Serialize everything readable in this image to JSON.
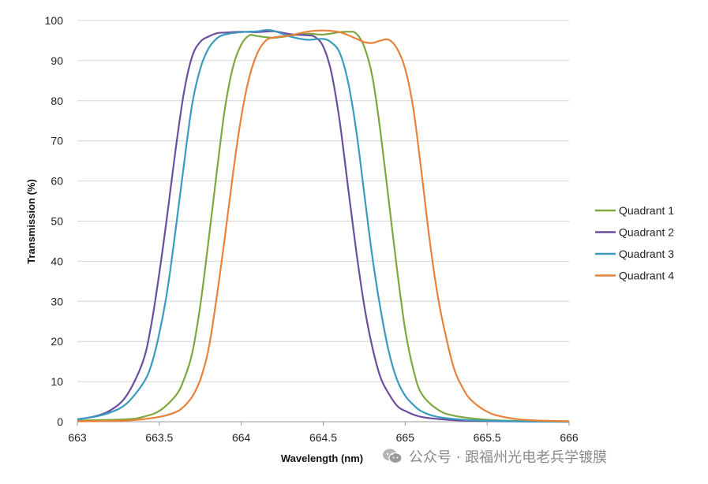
{
  "chart_data": {
    "type": "line",
    "xlabel": "Wavelength (nm)",
    "ylabel": "Transmission (%)",
    "xlim": [
      663,
      666
    ],
    "ylim": [
      0,
      100
    ],
    "x_ticks": [
      "663",
      "663.5",
      "664",
      "664.5",
      "665",
      "665.5",
      "666"
    ],
    "y_ticks": [
      "0",
      "10",
      "20",
      "30",
      "40",
      "50",
      "60",
      "70",
      "80",
      "90",
      "100"
    ],
    "grid": "horizontal",
    "legend_position": "right",
    "series": [
      {
        "name": "Quadrant 1",
        "color": "#7ea83f",
        "points": [
          [
            663,
            0.3
          ],
          [
            663.3,
            0.6
          ],
          [
            663.4,
            1.2
          ],
          [
            663.5,
            2.7
          ],
          [
            663.6,
            6.5
          ],
          [
            663.65,
            10.5
          ],
          [
            663.7,
            17
          ],
          [
            663.75,
            29
          ],
          [
            663.8,
            45
          ],
          [
            663.85,
            62
          ],
          [
            663.9,
            78
          ],
          [
            663.95,
            88.5
          ],
          [
            664.0,
            94
          ],
          [
            664.05,
            96.3
          ],
          [
            664.1,
            96.1
          ],
          [
            664.2,
            95.7
          ],
          [
            664.3,
            96.2
          ],
          [
            664.4,
            96.7
          ],
          [
            664.5,
            96.5
          ],
          [
            664.6,
            97.1
          ],
          [
            664.65,
            97.2
          ],
          [
            664.7,
            96.8
          ],
          [
            664.75,
            93.5
          ],
          [
            664.8,
            86
          ],
          [
            664.85,
            72
          ],
          [
            664.9,
            55
          ],
          [
            664.95,
            38
          ],
          [
            665.0,
            23
          ],
          [
            665.05,
            13
          ],
          [
            665.1,
            7
          ],
          [
            665.2,
            3
          ],
          [
            665.3,
            1.5
          ],
          [
            665.5,
            0.5
          ],
          [
            665.7,
            0.2
          ],
          [
            666,
            0.1
          ]
        ]
      },
      {
        "name": "Quadrant 2",
        "color": "#6b4f9e",
        "points": [
          [
            663,
            0.6
          ],
          [
            663.1,
            1.3
          ],
          [
            663.2,
            2.8
          ],
          [
            663.3,
            6.5
          ],
          [
            663.4,
            15
          ],
          [
            663.45,
            24
          ],
          [
            663.5,
            37
          ],
          [
            663.55,
            52
          ],
          [
            663.6,
            68
          ],
          [
            663.65,
            82
          ],
          [
            663.7,
            91
          ],
          [
            663.75,
            94.7
          ],
          [
            663.8,
            96
          ],
          [
            663.85,
            96.8
          ],
          [
            663.9,
            97
          ],
          [
            664.0,
            97.2
          ],
          [
            664.1,
            97.1
          ],
          [
            664.2,
            97.3
          ],
          [
            664.3,
            96.6
          ],
          [
            664.4,
            96.3
          ],
          [
            664.45,
            95.9
          ],
          [
            664.5,
            93.5
          ],
          [
            664.55,
            87
          ],
          [
            664.6,
            75
          ],
          [
            664.65,
            59
          ],
          [
            664.7,
            43
          ],
          [
            664.75,
            29
          ],
          [
            664.8,
            18.5
          ],
          [
            664.85,
            11
          ],
          [
            664.9,
            7
          ],
          [
            664.95,
            4
          ],
          [
            665.0,
            2.7
          ],
          [
            665.1,
            1.2
          ],
          [
            665.3,
            0.4
          ],
          [
            665.6,
            0.1
          ],
          [
            666,
            0
          ]
        ]
      },
      {
        "name": "Quadrant 3",
        "color": "#3a9bbf",
        "points": [
          [
            663,
            0.6
          ],
          [
            663.1,
            1.2
          ],
          [
            663.2,
            2.3
          ],
          [
            663.3,
            4.5
          ],
          [
            663.4,
            9.5
          ],
          [
            663.45,
            14
          ],
          [
            663.5,
            22
          ],
          [
            663.55,
            33
          ],
          [
            663.6,
            48
          ],
          [
            663.65,
            64
          ],
          [
            663.7,
            79
          ],
          [
            663.75,
            88
          ],
          [
            663.8,
            93
          ],
          [
            663.85,
            95.5
          ],
          [
            663.9,
            96.5
          ],
          [
            664.0,
            97.1
          ],
          [
            664.1,
            97.3
          ],
          [
            664.15,
            97.6
          ],
          [
            664.2,
            97.4
          ],
          [
            664.3,
            96
          ],
          [
            664.4,
            95.2
          ],
          [
            664.5,
            95.4
          ],
          [
            664.55,
            94.5
          ],
          [
            664.6,
            92
          ],
          [
            664.65,
            85
          ],
          [
            664.7,
            73
          ],
          [
            664.75,
            57
          ],
          [
            664.8,
            41
          ],
          [
            664.85,
            28
          ],
          [
            664.9,
            17.5
          ],
          [
            664.95,
            10.5
          ],
          [
            665.0,
            6.5
          ],
          [
            665.05,
            4.2
          ],
          [
            665.1,
            2.6
          ],
          [
            665.2,
            1.2
          ],
          [
            665.4,
            0.4
          ],
          [
            665.7,
            0.1
          ],
          [
            666,
            0
          ]
        ]
      },
      {
        "name": "Quadrant 4",
        "color": "#e8823a",
        "points": [
          [
            663,
            0.1
          ],
          [
            663.3,
            0.3
          ],
          [
            663.5,
            1.2
          ],
          [
            663.6,
            2.4
          ],
          [
            663.65,
            3.8
          ],
          [
            663.7,
            6.2
          ],
          [
            663.75,
            10.5
          ],
          [
            663.8,
            18
          ],
          [
            663.85,
            31
          ],
          [
            663.9,
            46
          ],
          [
            663.95,
            62
          ],
          [
            664.0,
            76
          ],
          [
            664.05,
            86
          ],
          [
            664.1,
            92
          ],
          [
            664.15,
            95
          ],
          [
            664.2,
            95.8
          ],
          [
            664.3,
            96.3
          ],
          [
            664.4,
            97.2
          ],
          [
            664.5,
            97.5
          ],
          [
            664.6,
            97.1
          ],
          [
            664.7,
            95.5
          ],
          [
            664.75,
            94.6
          ],
          [
            664.8,
            94.4
          ],
          [
            664.85,
            95
          ],
          [
            664.9,
            95.2
          ],
          [
            664.95,
            93
          ],
          [
            665.0,
            88
          ],
          [
            665.05,
            78
          ],
          [
            665.1,
            62
          ],
          [
            665.15,
            45
          ],
          [
            665.2,
            31
          ],
          [
            665.25,
            21
          ],
          [
            665.3,
            13
          ],
          [
            665.35,
            8.5
          ],
          [
            665.4,
            5.5
          ],
          [
            665.5,
            2.5
          ],
          [
            665.6,
            1.2
          ],
          [
            665.75,
            0.4
          ],
          [
            666,
            0.1
          ]
        ]
      }
    ]
  },
  "watermark": {
    "text": "公众号 · 跟福州光电老兵学镀膜"
  }
}
